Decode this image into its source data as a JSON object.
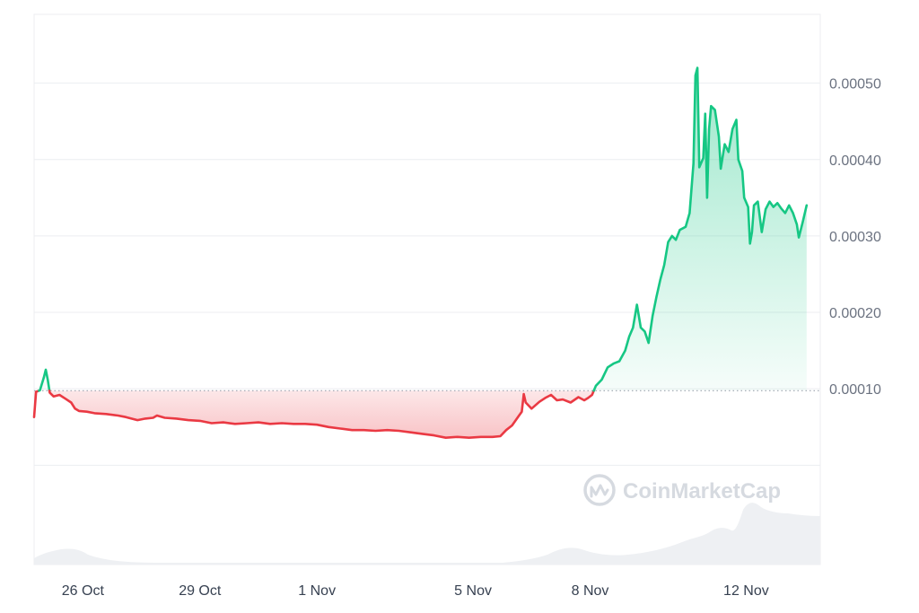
{
  "chart_data": {
    "type": "area",
    "watermark": "CoinMarketCap",
    "baseline": 9.75e-05,
    "colors": {
      "up_line": "#16c784",
      "down_line": "#ea3943",
      "up_fill": "#16c784",
      "down_fill": "#ea3943",
      "grid": "#eceef1",
      "volume": "#eef0f3",
      "baseline": "#9ca3af"
    },
    "ylim": [
      -0.00013,
      0.00059
    ],
    "y_ticks": [
      {
        "value": 0.0001,
        "label": "0.00010"
      },
      {
        "value": 0.0002,
        "label": "0.00020"
      },
      {
        "value": 0.0003,
        "label": "0.00030"
      },
      {
        "value": 0.0004,
        "label": "0.00040"
      },
      {
        "value": 0.0005,
        "label": "0.00050"
      }
    ],
    "gridlines": [
      0.0,
      0.0001,
      0.0002,
      0.0003,
      0.0004,
      0.0005
    ],
    "xlim": [
      24.75,
      44.9
    ],
    "x_ticks": [
      {
        "day": 26,
        "label": "26 Oct"
      },
      {
        "day": 29,
        "label": "29 Oct"
      },
      {
        "day": 32,
        "label": "1 Nov"
      },
      {
        "day": 36,
        "label": "5 Nov"
      },
      {
        "day": 39,
        "label": "8 Nov"
      },
      {
        "day": 43,
        "label": "12 Nov"
      }
    ],
    "series": [
      {
        "points": [
          [
            24.75,
            6.3e-05
          ],
          [
            24.8,
            9.6e-05
          ],
          [
            24.9,
            9.8e-05
          ],
          [
            25.0,
            0.000115
          ],
          [
            25.05,
            0.000125
          ],
          [
            25.1,
            0.000112
          ],
          [
            25.15,
            9.5e-05
          ],
          [
            25.25,
            9e-05
          ],
          [
            25.4,
            9.2e-05
          ],
          [
            25.55,
            8.7e-05
          ],
          [
            25.7,
            8.2e-05
          ],
          [
            25.8,
            7.4e-05
          ],
          [
            25.9,
            7.1e-05
          ],
          [
            26.1,
            7e-05
          ],
          [
            26.3,
            6.8e-05
          ],
          [
            26.6,
            6.7e-05
          ],
          [
            26.9,
            6.5e-05
          ],
          [
            27.1,
            6.3e-05
          ],
          [
            27.4,
            5.9e-05
          ],
          [
            27.6,
            6.1e-05
          ],
          [
            27.8,
            6.2e-05
          ],
          [
            27.9,
            6.5e-05
          ],
          [
            28.1,
            6.2e-05
          ],
          [
            28.4,
            6.1e-05
          ],
          [
            28.7,
            5.9e-05
          ],
          [
            29.0,
            5.8e-05
          ],
          [
            29.3,
            5.5e-05
          ],
          [
            29.6,
            5.6e-05
          ],
          [
            29.9,
            5.4e-05
          ],
          [
            30.2,
            5.5e-05
          ],
          [
            30.5,
            5.6e-05
          ],
          [
            30.8,
            5.4e-05
          ],
          [
            31.1,
            5.5e-05
          ],
          [
            31.4,
            5.4e-05
          ],
          [
            31.7,
            5.4e-05
          ],
          [
            32.0,
            5.3e-05
          ],
          [
            32.3,
            5e-05
          ],
          [
            32.6,
            4.8e-05
          ],
          [
            32.9,
            4.6e-05
          ],
          [
            33.2,
            4.6e-05
          ],
          [
            33.5,
            4.5e-05
          ],
          [
            33.8,
            4.6e-05
          ],
          [
            34.1,
            4.5e-05
          ],
          [
            34.4,
            4.3e-05
          ],
          [
            34.7,
            4.1e-05
          ],
          [
            35.0,
            3.9e-05
          ],
          [
            35.3,
            3.6e-05
          ],
          [
            35.6,
            3.7e-05
          ],
          [
            35.9,
            3.6e-05
          ],
          [
            36.2,
            3.7e-05
          ],
          [
            36.5,
            3.7e-05
          ],
          [
            36.7,
            3.8e-05
          ],
          [
            36.85,
            4.6e-05
          ],
          [
            37.0,
            5.2e-05
          ],
          [
            37.15,
            6.3e-05
          ],
          [
            37.25,
            7e-05
          ],
          [
            37.3,
            9.3e-05
          ],
          [
            37.35,
            8.2e-05
          ],
          [
            37.5,
            7.4e-05
          ],
          [
            37.7,
            8.3e-05
          ],
          [
            37.85,
            8.8e-05
          ],
          [
            38.0,
            9.2e-05
          ],
          [
            38.15,
            8.5e-05
          ],
          [
            38.3,
            8.6e-05
          ],
          [
            38.5,
            8.2e-05
          ],
          [
            38.7,
            8.9e-05
          ],
          [
            38.85,
            8.5e-05
          ],
          [
            38.95,
            8.8e-05
          ],
          [
            39.05,
            9.2e-05
          ],
          [
            39.15,
            0.000104
          ],
          [
            39.3,
            0.000112
          ],
          [
            39.45,
            0.000128
          ],
          [
            39.6,
            0.000133
          ],
          [
            39.75,
            0.000136
          ],
          [
            39.9,
            0.00015
          ],
          [
            40.0,
            0.000168
          ],
          [
            40.1,
            0.00018
          ],
          [
            40.2,
            0.00021
          ],
          [
            40.3,
            0.00018
          ],
          [
            40.4,
            0.000175
          ],
          [
            40.5,
            0.00016
          ],
          [
            40.6,
            0.000195
          ],
          [
            40.7,
            0.00022
          ],
          [
            40.8,
            0.000243
          ],
          [
            40.9,
            0.000262
          ],
          [
            41.0,
            0.000292
          ],
          [
            41.1,
            0.0003
          ],
          [
            41.2,
            0.000295
          ],
          [
            41.3,
            0.000308
          ],
          [
            41.45,
            0.000312
          ],
          [
            41.55,
            0.00033
          ],
          [
            41.65,
            0.000395
          ],
          [
            41.7,
            0.00051
          ],
          [
            41.75,
            0.00052
          ],
          [
            41.8,
            0.00039
          ],
          [
            41.9,
            0.000402
          ],
          [
            41.95,
            0.00046
          ],
          [
            42.0,
            0.00035
          ],
          [
            42.05,
            0.00044
          ],
          [
            42.1,
            0.00047
          ],
          [
            42.2,
            0.000465
          ],
          [
            42.3,
            0.00043
          ],
          [
            42.35,
            0.000388
          ],
          [
            42.45,
            0.00042
          ],
          [
            42.55,
            0.00041
          ],
          [
            42.65,
            0.00044
          ],
          [
            42.75,
            0.000452
          ],
          [
            42.8,
            0.0004
          ],
          [
            42.9,
            0.000385
          ],
          [
            42.95,
            0.00035
          ],
          [
            43.05,
            0.000338
          ],
          [
            43.1,
            0.00029
          ],
          [
            43.15,
            0.000305
          ],
          [
            43.2,
            0.00034
          ],
          [
            43.3,
            0.000345
          ],
          [
            43.4,
            0.000305
          ],
          [
            43.5,
            0.000335
          ],
          [
            43.6,
            0.000345
          ],
          [
            43.7,
            0.000338
          ],
          [
            43.8,
            0.000343
          ],
          [
            43.9,
            0.000336
          ],
          [
            44.0,
            0.00033
          ],
          [
            44.1,
            0.00034
          ],
          [
            44.2,
            0.00033
          ],
          [
            44.3,
            0.000315
          ],
          [
            44.35,
            0.000298
          ],
          [
            44.45,
            0.000318
          ],
          [
            44.55,
            0.00034
          ]
        ]
      }
    ]
  }
}
